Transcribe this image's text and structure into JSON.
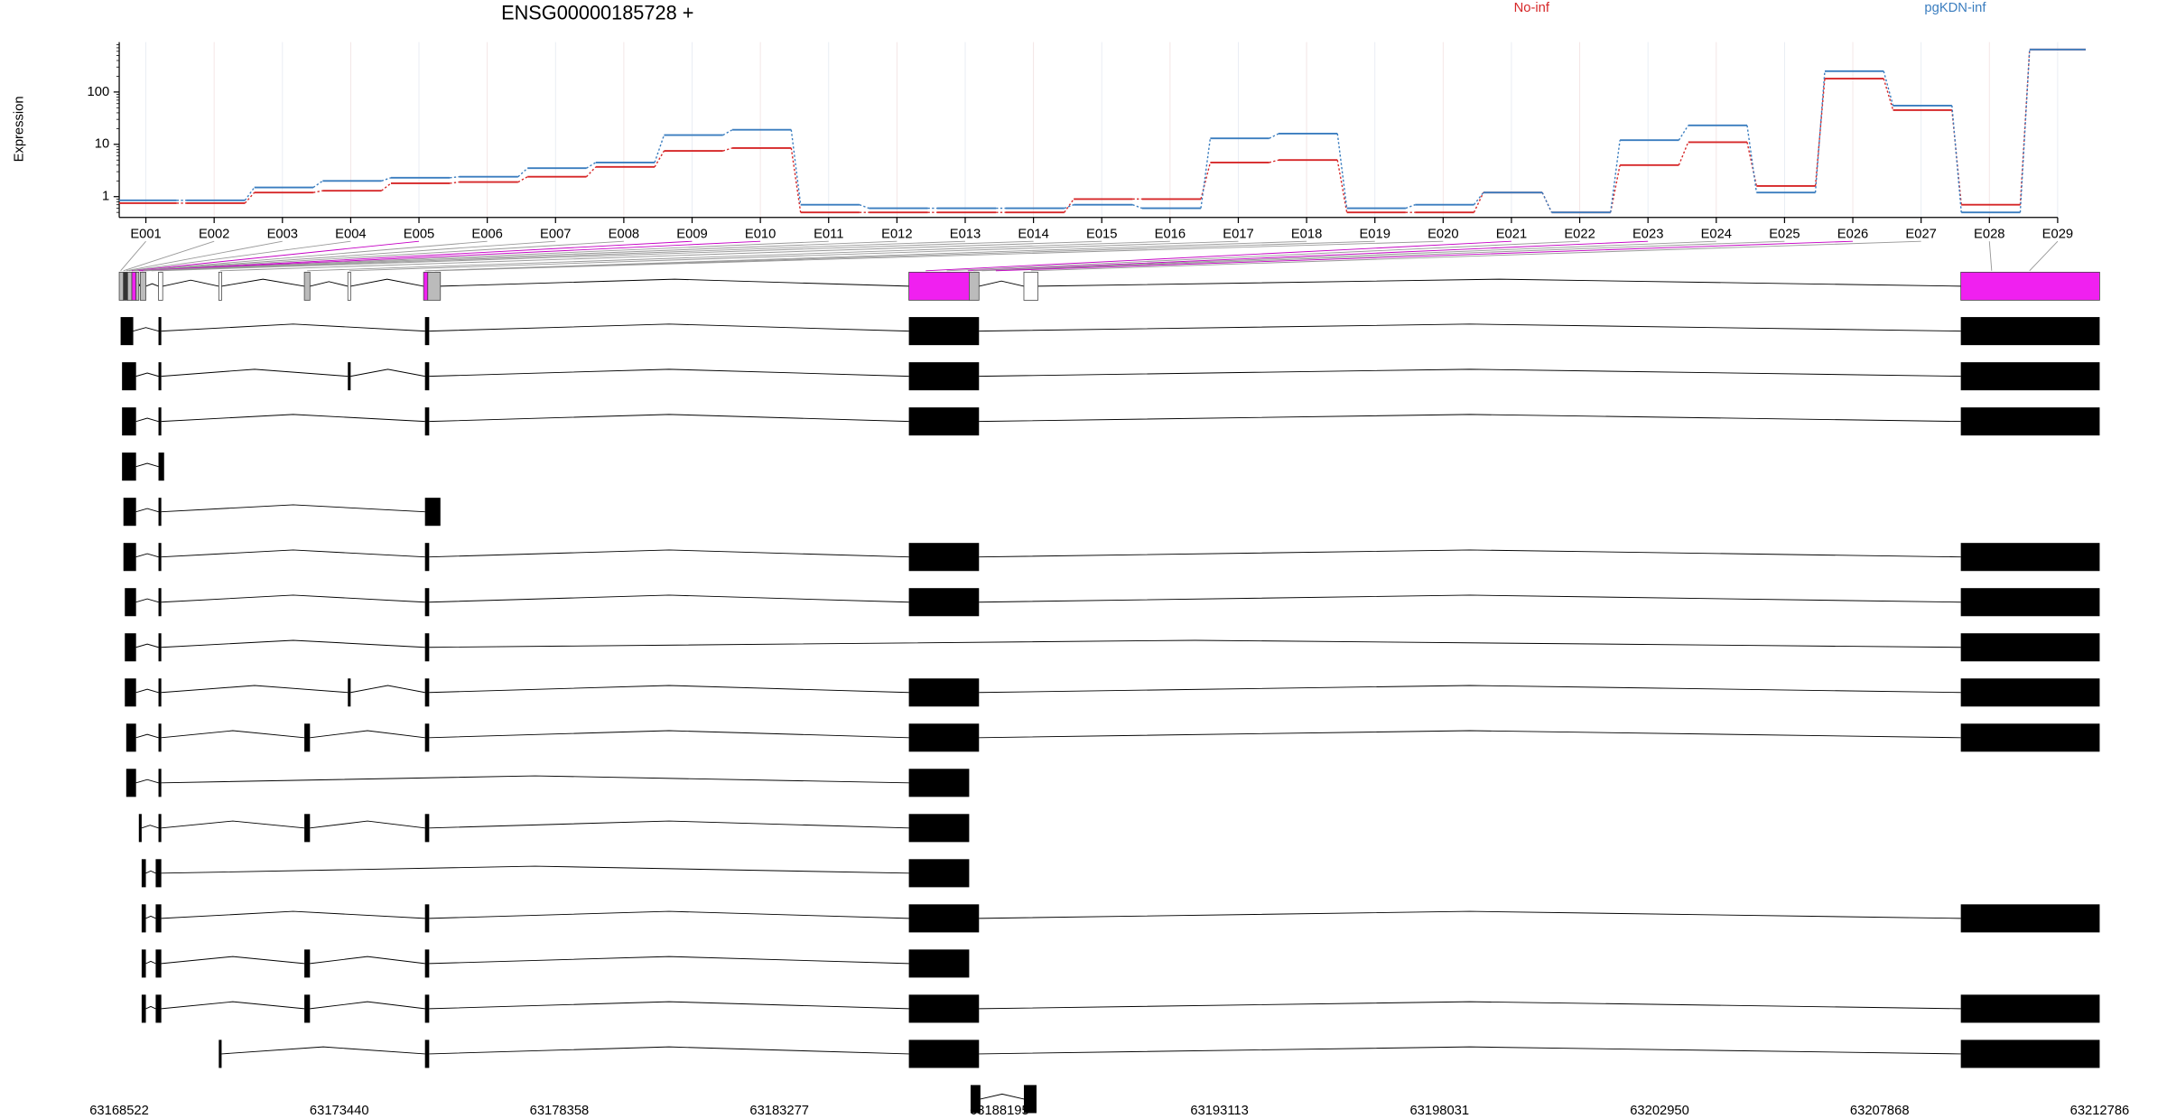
{
  "chart_data": {
    "type": "line",
    "title": "ENSG00000185728 +",
    "y_label": "Expression",
    "log_scale": true,
    "grid": true,
    "ylim": [
      0.4,
      900
    ],
    "yticks": [
      1,
      10,
      100
    ],
    "categories": [
      "E001",
      "E002",
      "E003",
      "E004",
      "E005",
      "E006",
      "E007",
      "E008",
      "E009",
      "E010",
      "E011",
      "E012",
      "E013",
      "E014",
      "E015",
      "E016",
      "E017",
      "E018",
      "E019",
      "E020",
      "E021",
      "E022",
      "E023",
      "E024",
      "E025",
      "E026",
      "E027",
      "E028",
      "E029"
    ],
    "series": [
      {
        "name": "No-inf",
        "color": "#d62728",
        "values": [
          0.75,
          0.75,
          1.2,
          1.3,
          1.8,
          1.9,
          2.4,
          3.7,
          7.5,
          8.5,
          0.5,
          0.5,
          0.5,
          0.5,
          0.9,
          0.9,
          4.5,
          5,
          0.5,
          0.5,
          1.2,
          0.5,
          4,
          11,
          1.6,
          180,
          45,
          0.7,
          650
        ]
      },
      {
        "name": "pgKDN-inf",
        "color": "#3a7dbf",
        "values": [
          0.85,
          0.85,
          1.5,
          2.0,
          2.3,
          2.4,
          3.5,
          4.5,
          15,
          19,
          0.7,
          0.6,
          0.6,
          0.6,
          0.7,
          0.6,
          13,
          16,
          0.6,
          0.7,
          1.2,
          0.5,
          12,
          23,
          1.2,
          250,
          55,
          0.5,
          650
        ]
      }
    ],
    "genomic_lim": [
      63168522,
      63212786
    ],
    "genomic_ticks": [
      63168522,
      63173440,
      63178358,
      63183277,
      63188195,
      63193113,
      63198031,
      63202950,
      63207868,
      63212786
    ]
  }
}
